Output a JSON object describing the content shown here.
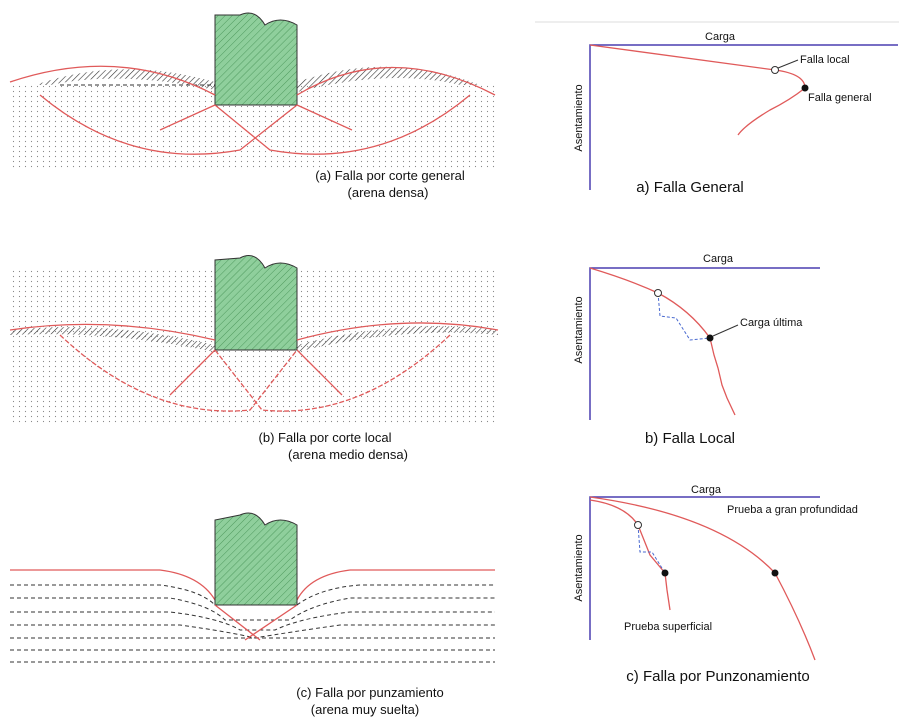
{
  "panels": [
    {
      "soil": {
        "caption": "(a) Falla por corte general",
        "subcaption": "(arena densa)"
      },
      "curve": {
        "load_label": "Carga",
        "settlement_label": "Asentamiento",
        "annotations": [
          "Falla local",
          "Falla general"
        ],
        "caption": "a) Falla General"
      }
    },
    {
      "soil": {
        "caption": "(b) Falla por corte local",
        "subcaption": "(arena medio densa)"
      },
      "curve": {
        "load_label": "Carga",
        "settlement_label": "Asentamiento",
        "annotations": [
          "Carga última"
        ],
        "caption": "b) Falla Local"
      }
    },
    {
      "soil": {
        "caption": "(c) Falla por punzamiento",
        "subcaption": "(arena muy suelta)"
      },
      "curve": {
        "load_label": "Carga",
        "settlement_label": "Asentamiento",
        "annotations": [
          "Prueba a gran profundidad",
          "Prueba superficial"
        ],
        "caption": "c) Falla por Punzonamiento"
      }
    }
  ]
}
